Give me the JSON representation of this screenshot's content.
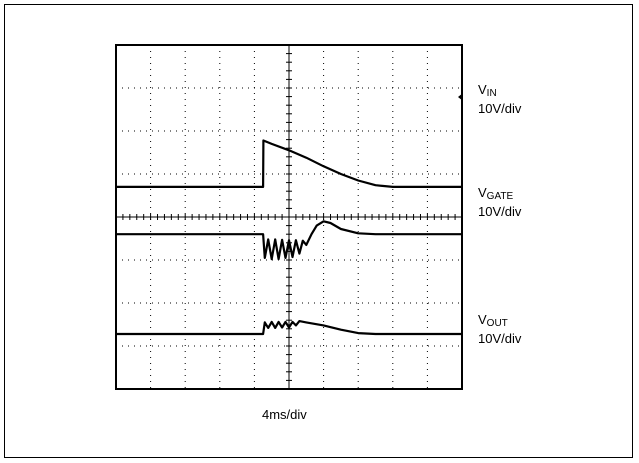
{
  "chart_data": {
    "type": "line",
    "title": "",
    "x_scale": "4ms/div",
    "grid": {
      "divisions_x": 10,
      "divisions_y": 8,
      "dotted": true
    },
    "series": [
      {
        "name_main": "V",
        "name_sub": "IN",
        "scale": "10V/div",
        "x": [
          0,
          4.0,
          4.25,
          4.26,
          4.5,
          5,
          5.5,
          6,
          6.5,
          7,
          7.5,
          8,
          10
        ],
        "y": [
          4.7,
          4.7,
          4.7,
          5.78,
          5.7,
          5.55,
          5.38,
          5.18,
          5.0,
          4.85,
          4.74,
          4.7,
          4.7
        ]
      },
      {
        "name_main": "V",
        "name_sub": "GATE",
        "scale": "10V/div",
        "x": [
          0,
          4.0,
          4.25,
          4.3,
          4.4,
          4.5,
          4.6,
          4.7,
          4.8,
          4.9,
          5.0,
          5.1,
          5.2,
          5.3,
          5.4,
          5.5,
          5.65,
          5.8,
          6.0,
          6.2,
          6.5,
          7.0,
          7.5,
          8.0,
          10
        ],
        "y": [
          3.6,
          3.6,
          3.6,
          3.05,
          3.48,
          3.02,
          3.48,
          3.02,
          3.47,
          3.05,
          3.46,
          3.07,
          3.46,
          3.15,
          3.45,
          3.35,
          3.6,
          3.8,
          3.9,
          3.86,
          3.72,
          3.62,
          3.6,
          3.6,
          3.6
        ]
      },
      {
        "name_main": "V",
        "name_sub": "OUT",
        "scale": "10V/div",
        "x": [
          0,
          4.0,
          4.25,
          4.3,
          4.4,
          4.5,
          4.6,
          4.7,
          4.8,
          4.9,
          5.0,
          5.1,
          5.2,
          5.3,
          5.5,
          6.0,
          6.5,
          7.0,
          7.5,
          10
        ],
        "y": [
          1.28,
          1.28,
          1.28,
          1.55,
          1.42,
          1.56,
          1.42,
          1.56,
          1.43,
          1.56,
          1.43,
          1.56,
          1.48,
          1.58,
          1.55,
          1.48,
          1.38,
          1.3,
          1.28,
          1.28
        ]
      }
    ]
  }
}
